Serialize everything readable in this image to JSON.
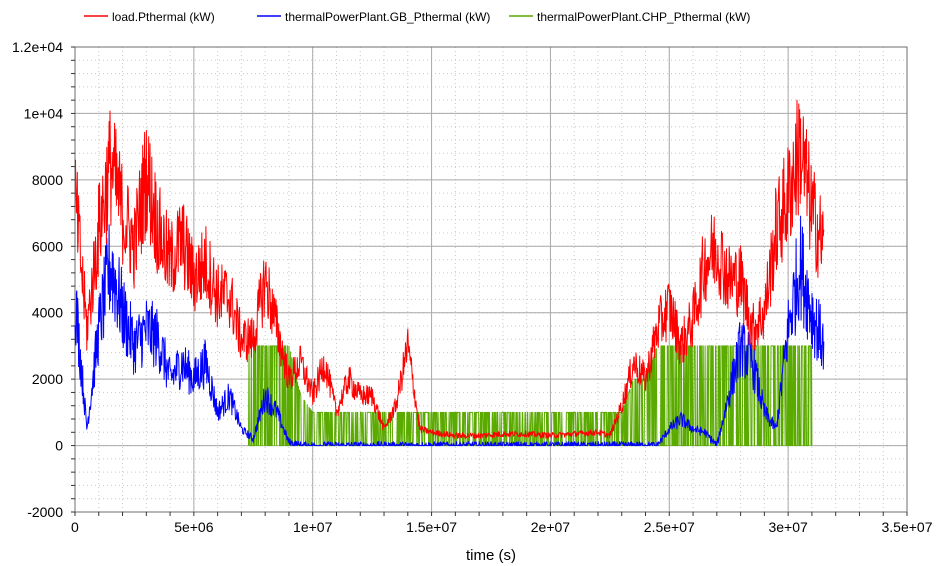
{
  "chart_data": {
    "type": "line",
    "xlabel": "time (s)",
    "ylabel": "",
    "xlim": [
      0,
      35000000
    ],
    "ylim": [
      -2000,
      12000
    ],
    "grid": true,
    "legend_position": "top",
    "x_ticks": [
      0,
      5000000,
      10000000,
      15000000,
      20000000,
      25000000,
      30000000,
      35000000
    ],
    "x_tick_labels": [
      "0",
      "5e+06",
      "1e+07",
      "1.5e+07",
      "2e+07",
      "2.5e+07",
      "3e+07",
      "3.5e+07"
    ],
    "y_ticks": [
      -2000,
      0,
      2000,
      4000,
      6000,
      8000,
      10000,
      12000
    ],
    "y_tick_labels": [
      "-2000",
      "0",
      "2000",
      "4000",
      "6000",
      "8000",
      "1e+04",
      "1.2e+04"
    ],
    "series": [
      {
        "name": "load.Pthermal (kW)",
        "color": "#ff0000",
        "x": [
          0,
          500000,
          1000000,
          1500000,
          2000000,
          2500000,
          3000000,
          3500000,
          4000000,
          4500000,
          5000000,
          5500000,
          6000000,
          6500000,
          7000000,
          7500000,
          8000000,
          8500000,
          9000000,
          9500000,
          10000000,
          10500000,
          11000000,
          11500000,
          12000000,
          12500000,
          13000000,
          13500000,
          14000000,
          14500000,
          15000000,
          16000000,
          17000000,
          18000000,
          19000000,
          20000000,
          21000000,
          22000000,
          22500000,
          23000000,
          23500000,
          24000000,
          24500000,
          25000000,
          25500000,
          26000000,
          26500000,
          27000000,
          27500000,
          28000000,
          28500000,
          29000000,
          29500000,
          30000000,
          30500000,
          31000000,
          31500000
        ],
        "y": [
          7500,
          3500,
          6500,
          8500,
          7000,
          6000,
          8200,
          6500,
          5500,
          6200,
          5000,
          5500,
          4500,
          4500,
          3200,
          3200,
          5000,
          3500,
          2000,
          2500,
          1500,
          2500,
          1000,
          2000,
          1500,
          1500,
          500,
          1200,
          3000,
          500,
          400,
          300,
          300,
          350,
          350,
          300,
          350,
          400,
          300,
          1200,
          2500,
          2000,
          3500,
          4200,
          3000,
          3800,
          5500,
          6000,
          5000,
          5000,
          3500,
          4000,
          6500,
          7500,
          9000,
          7000,
          6000
        ]
      },
      {
        "name": "thermalPowerPlant.GB_Pthermal (kW)",
        "color": "#0000ff",
        "x": [
          0,
          500000,
          1000000,
          1500000,
          2000000,
          2500000,
          3000000,
          3500000,
          4000000,
          4500000,
          5000000,
          5500000,
          6000000,
          6500000,
          7000000,
          7500000,
          8000000,
          8500000,
          9000000,
          9500000,
          10000000,
          24500000,
          25000000,
          25500000,
          26000000,
          26500000,
          27000000,
          27500000,
          28000000,
          28500000,
          29000000,
          29500000,
          30000000,
          30500000,
          31000000,
          31500000
        ],
        "y": [
          4500,
          500,
          3500,
          5500,
          4000,
          3000,
          3500,
          3200,
          2000,
          2500,
          2000,
          2500,
          1000,
          1500,
          500,
          200,
          1500,
          1000,
          100,
          0,
          0,
          0,
          500,
          800,
          500,
          400,
          0,
          1500,
          3000,
          2500,
          1000,
          500,
          3500,
          5500,
          4000,
          3000
        ]
      },
      {
        "name": "thermalPowerPlant.CHP_Pthermal (kW)",
        "color": "#5aaa00",
        "x": [
          7300000,
          8000000,
          9000000,
          9500000,
          10000000,
          11000000,
          12000000,
          12500000,
          13000000,
          14000000,
          15000000,
          16000000,
          17000000,
          18000000,
          19000000,
          20000000,
          21000000,
          22000000,
          22500000,
          23000000,
          23500000,
          24000000,
          24500000,
          25000000,
          26000000,
          27000000,
          28000000,
          29000000,
          30000000,
          31000000
        ],
        "y": [
          3000,
          3000,
          3000,
          1500,
          1000,
          1000,
          1000,
          1000,
          1000,
          1000,
          1000,
          1000,
          1000,
          1000,
          1000,
          1000,
          1000,
          1000,
          1000,
          1000,
          2000,
          2000,
          3000,
          3000,
          3000,
          3000,
          3000,
          3000,
          3000,
          3000
        ]
      }
    ]
  }
}
